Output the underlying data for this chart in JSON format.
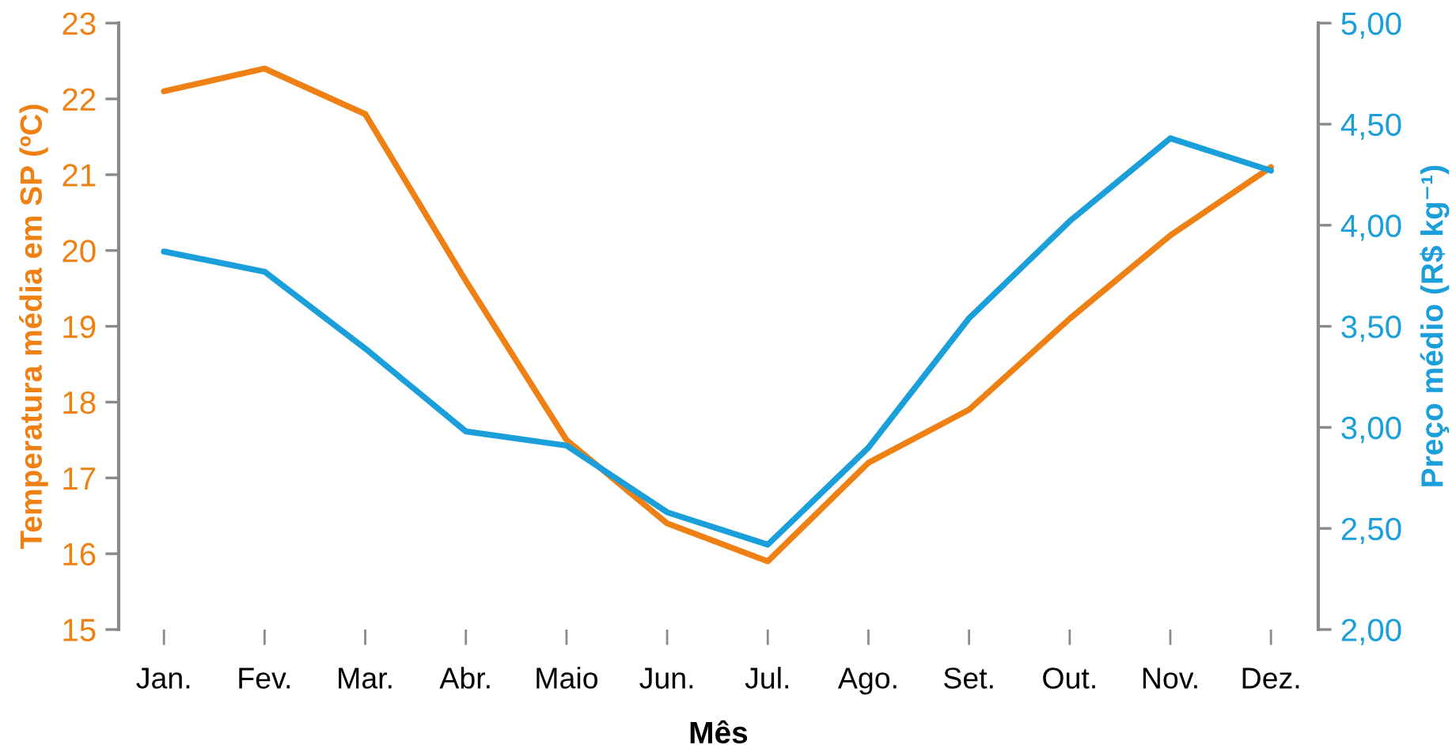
{
  "chart_data": {
    "type": "line",
    "categories": [
      "Jan.",
      "Fev.",
      "Mar.",
      "Abr.",
      "Maio",
      "Jun.",
      "Jul.",
      "Ago.",
      "Set.",
      "Out.",
      "Nov.",
      "Dez."
    ],
    "xlabel": "Mês",
    "ylabel": "Temperatura média em SP (ºC)",
    "y2label": "Preço médio (R$ kg⁻¹)",
    "ylim": [
      15,
      23
    ],
    "yticks": [
      15,
      16,
      17,
      18,
      19,
      20,
      21,
      22,
      23
    ],
    "y2lim": [
      2,
      5
    ],
    "y2ticks": [
      {
        "value": 2,
        "label": "2,00"
      },
      {
        "value": 2.5,
        "label": "2,50"
      },
      {
        "value": 3,
        "label": "3,00"
      },
      {
        "value": 3.5,
        "label": "3,50"
      },
      {
        "value": 4,
        "label": "4,00"
      },
      {
        "value": 4.5,
        "label": "4,50"
      },
      {
        "value": 5,
        "label": "5,00"
      }
    ],
    "series": [
      {
        "color": "#ef8114",
        "values": [
          22.1,
          22.4,
          21.8,
          19.6,
          17.5,
          16.4,
          15.9,
          17.2,
          17.9,
          19.1,
          20.2,
          21.1
        ]
      },
      {
        "color": "#1a9fdb",
        "axis": "y2",
        "values": [
          3.87,
          3.77,
          3.39,
          2.98,
          2.91,
          2.58,
          2.42,
          2.9,
          3.54,
          4.02,
          4.43,
          4.27
        ]
      }
    ]
  }
}
